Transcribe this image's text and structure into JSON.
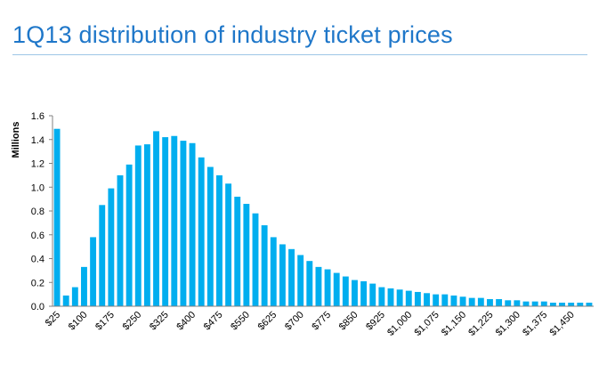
{
  "slide": {
    "title": "1Q13 distribution of industry ticket prices"
  },
  "colors": {
    "title": "#1f77c9",
    "bar": "#00aeef",
    "axis": "#808080",
    "rule": "#9dc6e6"
  },
  "chart_data": {
    "type": "bar",
    "title": "",
    "xlabel": "",
    "ylabel": "Millions",
    "ylim": [
      0,
      1.6
    ],
    "yticks": [
      0.0,
      0.2,
      0.4,
      0.6,
      0.8,
      1.0,
      1.2,
      1.4,
      1.6
    ],
    "ytick_labels": [
      "0.0",
      "0.2",
      "0.4",
      "0.6",
      "0.8",
      "1.0",
      "1.2",
      "1.4",
      "1.6"
    ],
    "grid": false,
    "legend": "none",
    "categories": [
      "$25",
      "$50",
      "$75",
      "$100",
      "$125",
      "$150",
      "$175",
      "$200",
      "$225",
      "$250",
      "$275",
      "$300",
      "$325",
      "$350",
      "$375",
      "$400",
      "$425",
      "$450",
      "$475",
      "$500",
      "$525",
      "$550",
      "$575",
      "$600",
      "$625",
      "$650",
      "$675",
      "$700",
      "$725",
      "$750",
      "$775",
      "$800",
      "$825",
      "$850",
      "$875",
      "$900",
      "$925",
      "$950",
      "$975",
      "$1,000",
      "$1,025",
      "$1,050",
      "$1,075",
      "$1,100",
      "$1,125",
      "$1,150",
      "$1,175",
      "$1,200",
      "$1,225",
      "$1,250",
      "$1,275",
      "$1,300",
      "$1,325",
      "$1,350",
      "$1,375",
      "$1,400",
      "$1,425",
      "$1,450",
      "$1,475",
      "$1,500"
    ],
    "tick_labels_shown": [
      "$25",
      "$100",
      "$175",
      "$250",
      "$325",
      "$400",
      "$475",
      "$550",
      "$625",
      "$700",
      "$775",
      "$850",
      "$925",
      "$1,000",
      "$1,075",
      "$1,150",
      "$1,225",
      "$1,300",
      "$1,375",
      "$1,450"
    ],
    "values": [
      1.49,
      0.09,
      0.16,
      0.33,
      0.58,
      0.85,
      0.99,
      1.1,
      1.19,
      1.35,
      1.36,
      1.47,
      1.42,
      1.43,
      1.39,
      1.37,
      1.25,
      1.17,
      1.1,
      1.03,
      0.92,
      0.86,
      0.78,
      0.68,
      0.58,
      0.52,
      0.48,
      0.43,
      0.38,
      0.33,
      0.31,
      0.28,
      0.25,
      0.22,
      0.21,
      0.19,
      0.16,
      0.15,
      0.14,
      0.13,
      0.12,
      0.11,
      0.1,
      0.1,
      0.09,
      0.08,
      0.07,
      0.07,
      0.06,
      0.06,
      0.05,
      0.05,
      0.04,
      0.04,
      0.04,
      0.03,
      0.03,
      0.03,
      0.03,
      0.03
    ]
  }
}
